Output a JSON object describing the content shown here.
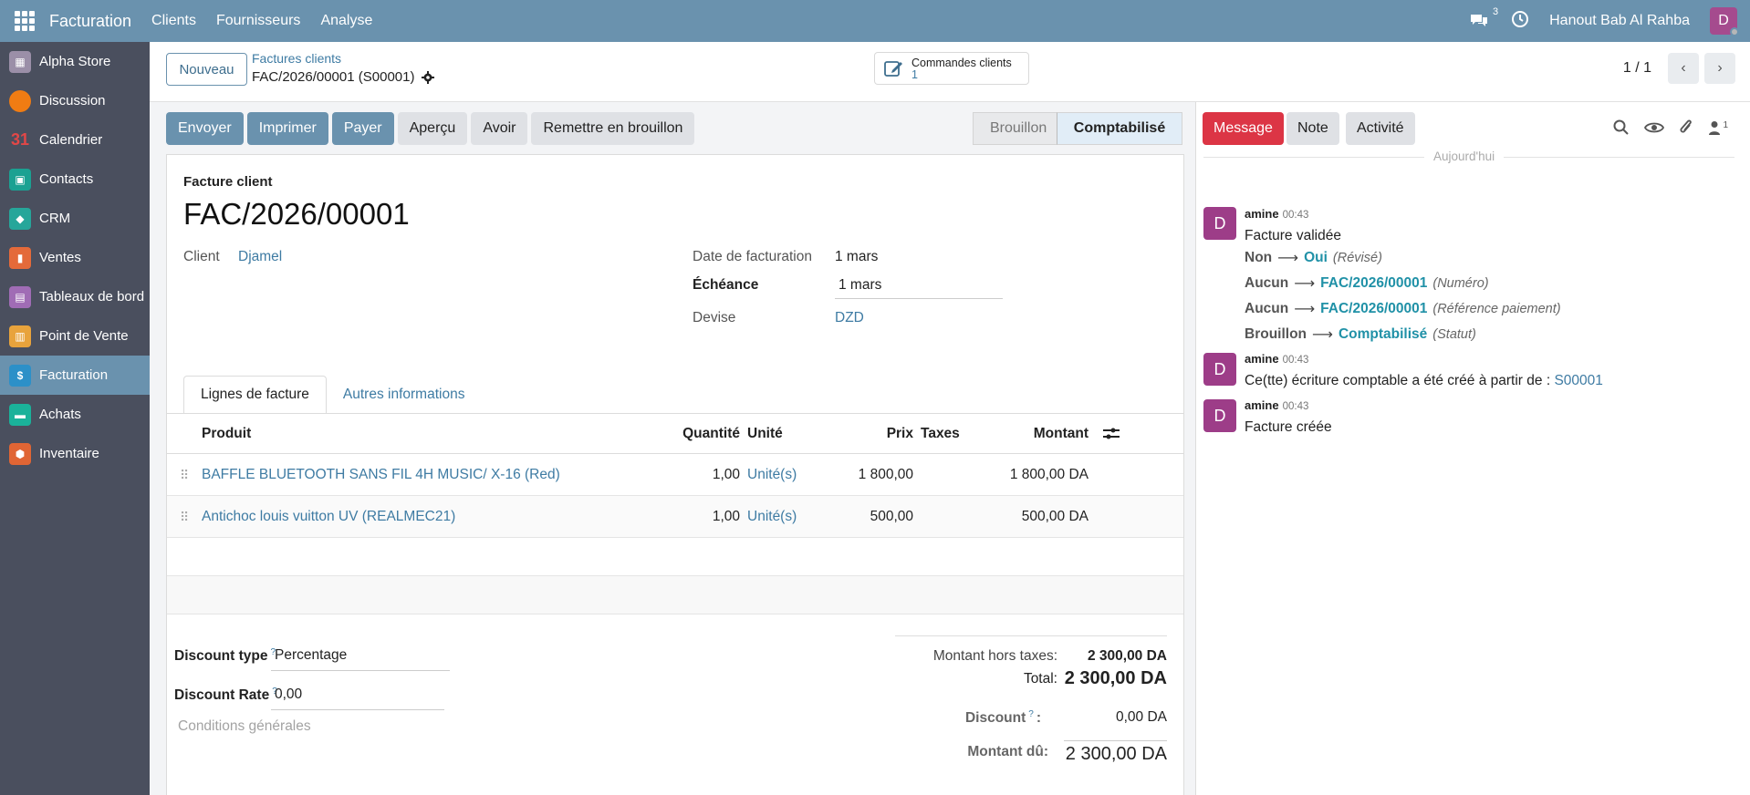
{
  "topbar": {
    "brand": "Facturation",
    "menu": [
      "Clients",
      "Fournisseurs",
      "Analyse"
    ],
    "chat_count": "3",
    "company": "Hanout Bab Al Rahba",
    "avatar_letter": "D"
  },
  "sidebar": {
    "items": [
      {
        "label": "Alpha Store",
        "icon": "store-icon",
        "color": "#9b8fa8"
      },
      {
        "label": "Discussion",
        "icon": "discussion-icon",
        "color": "#f07c13"
      },
      {
        "label": "Calendrier",
        "icon": "calendar-icon",
        "color": "#e24747"
      },
      {
        "label": "Contacts",
        "icon": "contacts-icon",
        "color": "#1ba192"
      },
      {
        "label": "CRM",
        "icon": "crm-icon",
        "color": "#26a69a"
      },
      {
        "label": "Ventes",
        "icon": "sales-icon",
        "color": "#e46a3a"
      },
      {
        "label": "Tableaux de bord",
        "icon": "dashboard-icon",
        "color": "#a06cb5"
      },
      {
        "label": "Point de Vente",
        "icon": "pos-icon",
        "color": "#e8a33c"
      },
      {
        "label": "Facturation",
        "icon": "invoicing-icon",
        "color": "#2c90c8"
      },
      {
        "label": "Achats",
        "icon": "purchase-icon",
        "color": "#1ab29a"
      },
      {
        "label": "Inventaire",
        "icon": "inventory-icon",
        "color": "#e06534"
      }
    ],
    "active_index": 8
  },
  "control": {
    "new_label": "Nouveau",
    "breadcrumb_parent": "Factures clients",
    "breadcrumb_current": "FAC/2026/00001 (S00001)",
    "smart_label": "Commandes clients",
    "smart_count": "1",
    "pager": "1 / 1"
  },
  "actions": [
    "Envoyer",
    "Imprimer",
    "Payer",
    "Aperçu",
    "Avoir",
    "Remettre en brouillon"
  ],
  "status": {
    "draft": "Brouillon",
    "posted": "Comptabilisé"
  },
  "form": {
    "kind": "Facture client",
    "name": "FAC/2026/00001",
    "client_label": "Client",
    "client": "Djamel",
    "invoice_date_label": "Date de facturation",
    "invoice_date": "1 mars",
    "due_label": "Échéance",
    "due_date": "1 mars",
    "currency_label": "Devise",
    "currency": "DZD"
  },
  "tabs": [
    "Lignes de facture",
    "Autres informations"
  ],
  "table": {
    "headers": {
      "product": "Produit",
      "qty": "Quantité",
      "uom": "Unité",
      "price": "Prix",
      "taxes": "Taxes",
      "amount": "Montant"
    },
    "rows": [
      {
        "product": "BAFFLE BLUETOOTH SANS FIL 4H MUSIC/ X-16 (Red)",
        "qty": "1,00",
        "uom": "Unité(s)",
        "price": "1 800,00",
        "amount": "1 800,00 DA"
      },
      {
        "product": "Antichoc louis vuitton UV (REALMEC21)",
        "qty": "1,00",
        "uom": "Unité(s)",
        "price": "500,00",
        "amount": "500,00 DA"
      }
    ]
  },
  "discount": {
    "type_label": "Discount type",
    "type_value": "Percentage",
    "rate_label": "Discount Rate",
    "rate_value": "0,00",
    "help": "?"
  },
  "conditions_placeholder": "Conditions générales",
  "totals": {
    "untaxed_label": "Montant hors taxes:",
    "untaxed": "2 300,00 DA",
    "total_label": "Total:",
    "total": "2 300,00 DA",
    "discount_label": "Discount",
    "discount": "0,00 DA",
    "due_label": "Montant dû:",
    "due": "2 300,00 DA"
  },
  "chatter": {
    "message_btn": "Message",
    "note_btn": "Note",
    "activity_btn": "Activité",
    "followers": "1",
    "today": "Aujourd'hui",
    "messages": [
      {
        "author": "amine",
        "time": "00:43",
        "text": "Facture validée",
        "tracking": [
          {
            "old": "Non",
            "new": "Oui",
            "field": "(Révisé)"
          },
          {
            "old": "Aucun",
            "new": "FAC/2026/00001",
            "field": "(Numéro)"
          },
          {
            "old": "Aucun",
            "new": "FAC/2026/00001",
            "field": "(Référence paiement)"
          },
          {
            "old": "Brouillon",
            "new": "Comptabilisé",
            "field": "(Statut)"
          }
        ]
      },
      {
        "author": "amine",
        "time": "00:43",
        "text": "Ce(tte) écriture comptable a été créé à partir de :",
        "link": "S00001"
      },
      {
        "author": "amine",
        "time": "00:43",
        "text": "Facture créée"
      }
    ]
  }
}
